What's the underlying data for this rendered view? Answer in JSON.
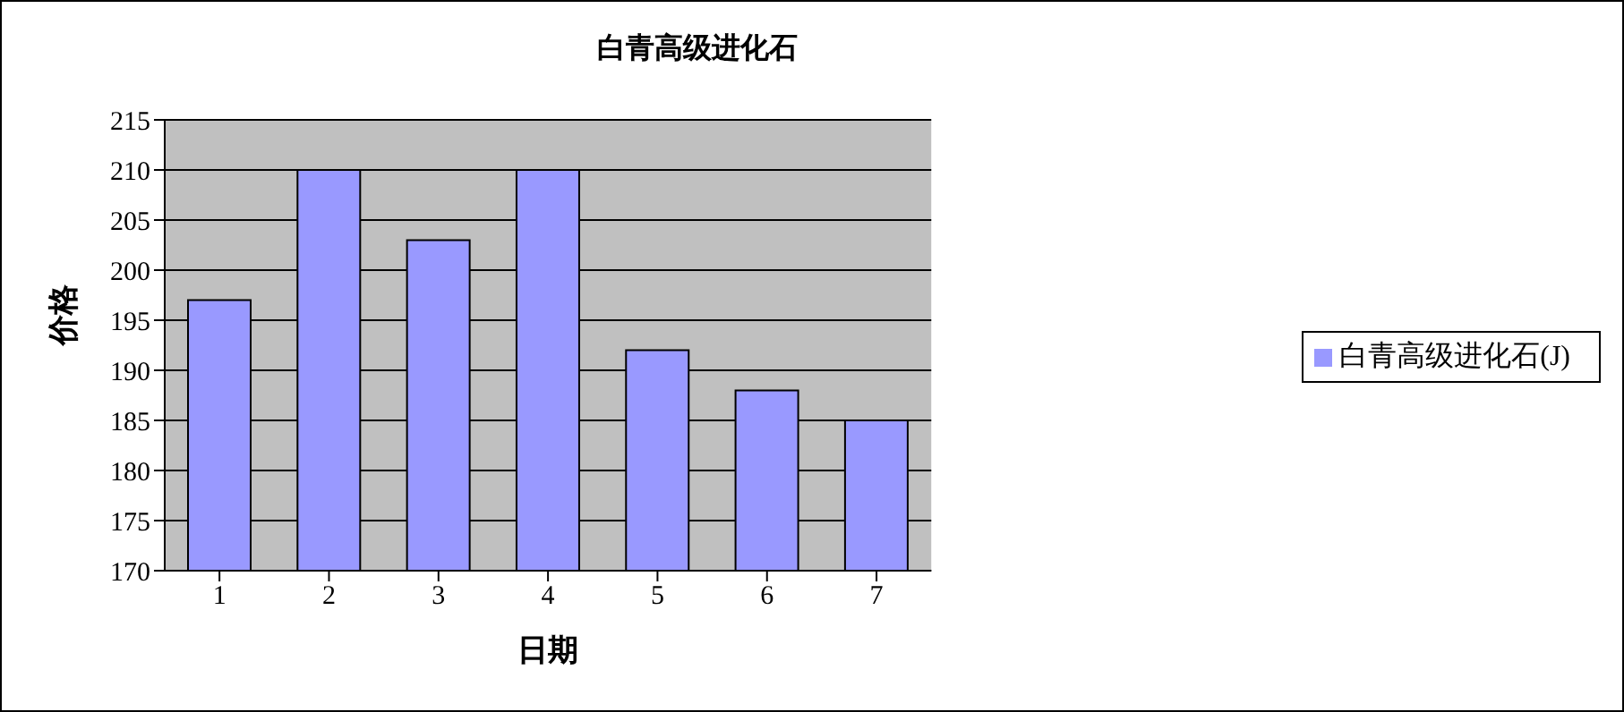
{
  "chart_data": {
    "type": "bar",
    "title": "白青高级进化石",
    "xlabel": "日期",
    "ylabel": "价格",
    "categories": [
      "1",
      "2",
      "3",
      "4",
      "5",
      "6",
      "7"
    ],
    "series": [
      {
        "name": "白青高级进化石(J)",
        "color": "#9999ff",
        "values": [
          197,
          210,
          203,
          210,
          192,
          188,
          185
        ]
      }
    ],
    "ylim": [
      170,
      215
    ],
    "yticks": [
      170,
      175,
      180,
      185,
      190,
      195,
      200,
      205,
      210,
      215
    ],
    "grid": "y",
    "legend": "right"
  }
}
